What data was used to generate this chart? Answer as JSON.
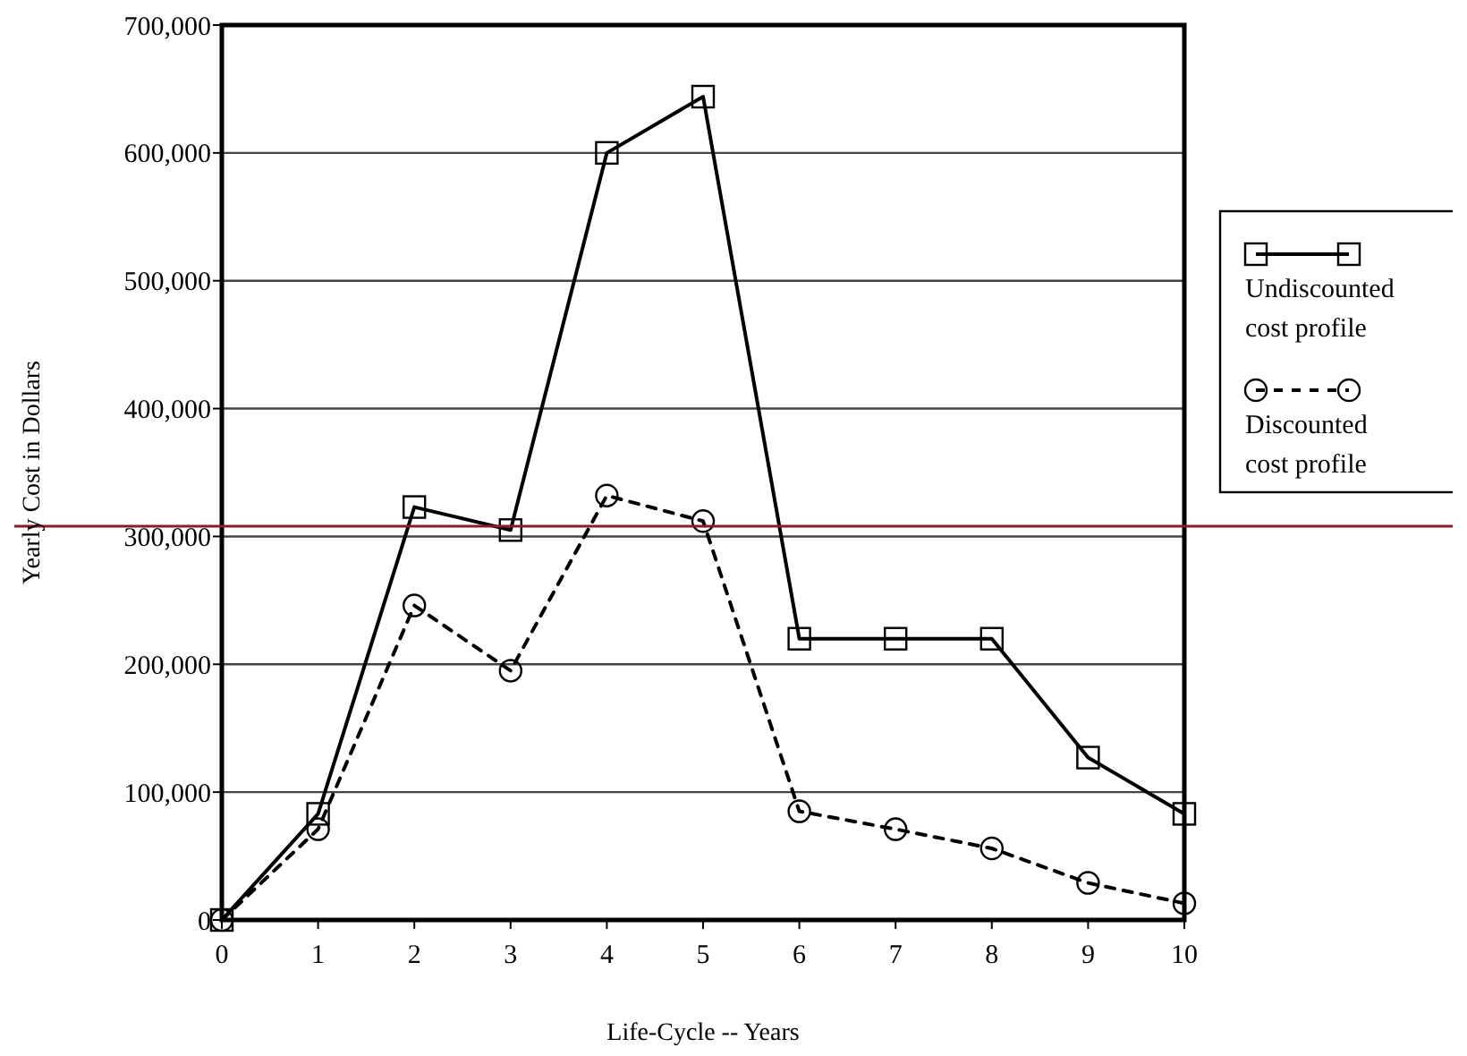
{
  "chart_data": {
    "type": "line",
    "xlabel": "Life-Cycle -- Years",
    "ylabel": "Yearly Cost in Dollars",
    "x": [
      0,
      1,
      2,
      3,
      4,
      5,
      6,
      7,
      8,
      9,
      10
    ],
    "xlim": [
      0,
      10
    ],
    "xticks": [
      0,
      1,
      2,
      3,
      4,
      5,
      6,
      7,
      8,
      9,
      10
    ],
    "ylim": [
      0,
      700000
    ],
    "yticks": [
      {
        "value": 0,
        "label": "0"
      },
      {
        "value": 100000,
        "label": "100,000"
      },
      {
        "value": 200000,
        "label": "200,000"
      },
      {
        "value": 300000,
        "label": "300,000"
      },
      {
        "value": 400000,
        "label": "400,000"
      },
      {
        "value": 500000,
        "label": "500,000"
      },
      {
        "value": 600000,
        "label": "600,000"
      },
      {
        "value": 700000,
        "label": "700,000"
      }
    ],
    "grid": "y",
    "legend": "right",
    "series": [
      {
        "name": "Undiscounted cost profile",
        "color": "#000000",
        "marker": "square",
        "line_style": "solid",
        "values": [
          0,
          83000,
          323000,
          305000,
          600000,
          644000,
          220000,
          220000,
          220000,
          127000,
          83000
        ]
      },
      {
        "name": "Discounted cost profile",
        "color": "#000000",
        "marker": "circle",
        "line_style": "dashed",
        "values": [
          0,
          71000,
          246000,
          195000,
          332000,
          312000,
          85000,
          71000,
          56000,
          29000,
          13000
        ]
      }
    ],
    "ref_lines": [
      {
        "axis": "y",
        "value": 308000,
        "color": "#8b1a2b",
        "line_style": "solid"
      }
    ]
  }
}
